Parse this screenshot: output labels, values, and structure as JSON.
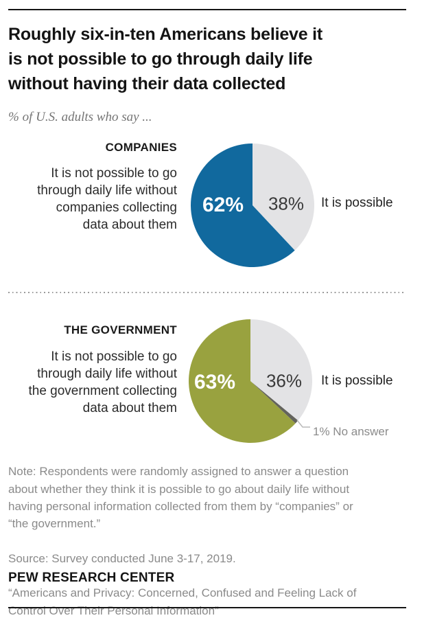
{
  "colors": {
    "companies_slice_blue": "#11699e",
    "government_slice_olive": "#99a23f",
    "possible_slice_gray": "#e3e3e5",
    "no_answer_slice_dark": "#63635c",
    "rule_black": "#141414",
    "note_gray": "#8a8a8a",
    "callout_gray": "#b9b9b9"
  },
  "header": {
    "title_lines": [
      "Roughly six-in-ten Americans believe it",
      "is not possible to go through daily life",
      "without having their data collected"
    ],
    "subtitle": "% of U.S. adults who say ..."
  },
  "sections": [
    {
      "label": "COMPANIES",
      "not_possible_lines": [
        "It is not possible to go",
        "through daily life without",
        "companies collecting",
        "data about them"
      ],
      "possible_label": "It is possible"
    },
    {
      "label": "THE GOVERNMENT",
      "not_possible_lines": [
        "It is not possible to go",
        "through daily life without",
        "the government collecting",
        "data about them"
      ],
      "possible_label": "It is possible",
      "no_answer_label": "1% No answer"
    }
  ],
  "chart_data": [
    {
      "type": "pie",
      "id": "companies",
      "title": "COMPANIES",
      "start": "12-oclock",
      "direction": "clockwise",
      "slices": [
        {
          "label": "It is possible",
          "value": 38,
          "display": "38%",
          "color": "#e3e3e5"
        },
        {
          "label": "It is not possible to go through daily life without companies collecting data about them",
          "value": 62,
          "display": "62%",
          "color": "#11699e"
        }
      ]
    },
    {
      "type": "pie",
      "id": "government",
      "title": "THE GOVERNMENT",
      "start": "12-oclock",
      "direction": "clockwise",
      "slices": [
        {
          "label": "It is possible",
          "value": 36,
          "display": "36%",
          "color": "#e3e3e5"
        },
        {
          "label": "No answer",
          "value": 1,
          "display": "1% No answer",
          "color": "#63635c"
        },
        {
          "label": "It is not possible to go through daily life without the government collecting data about them",
          "value": 63,
          "display": "63%",
          "color": "#99a23f"
        }
      ]
    }
  ],
  "footer": {
    "note_lines": [
      "Note: Respondents were randomly assigned to answer a question",
      "about whether they think it is possible to go about daily life without",
      "having personal information collected from them by “companies” or",
      "“the government.”"
    ],
    "source_line": "Source: Survey conducted June 3-17, 2019.",
    "report_lines": [
      "“Americans and Privacy: Concerned, Confused and Feeling Lack of",
      "Control Over Their Personal Information”"
    ],
    "brand": "PEW RESEARCH CENTER"
  }
}
